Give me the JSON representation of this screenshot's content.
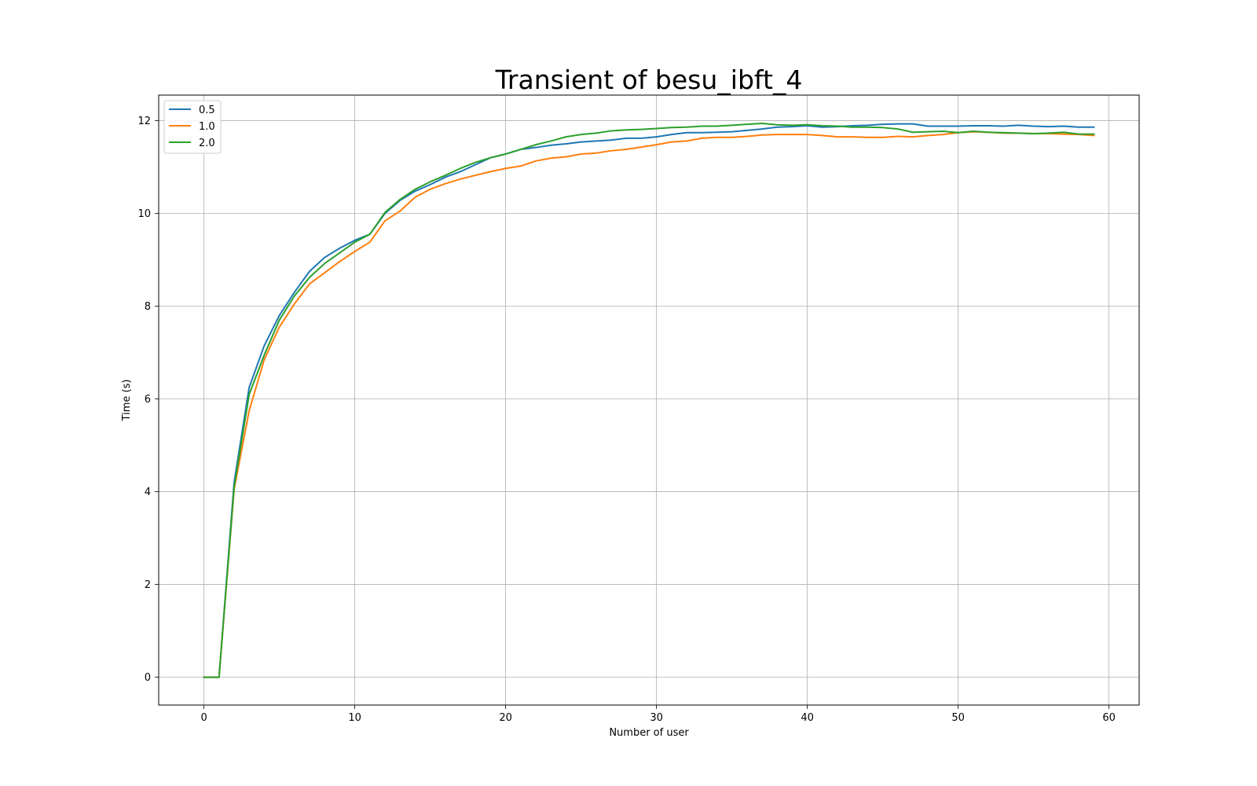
{
  "chart_data": {
    "type": "line",
    "title": "Transient of besu_ibft_4",
    "xlabel": "Number of user",
    "ylabel": "Time (s)",
    "xlim": [
      -3,
      62
    ],
    "ylim": [
      -0.6,
      12.55
    ],
    "xticks": [
      0,
      10,
      20,
      30,
      40,
      50,
      60
    ],
    "yticks": [
      0,
      2,
      4,
      6,
      8,
      10,
      12
    ],
    "grid": true,
    "legend_position": "top-left",
    "x": [
      0,
      1,
      2,
      3,
      4,
      5,
      6,
      7,
      8,
      9,
      10,
      11,
      12,
      13,
      14,
      15,
      16,
      17,
      18,
      19,
      20,
      21,
      22,
      23,
      24,
      25,
      26,
      27,
      28,
      29,
      30,
      31,
      32,
      33,
      34,
      35,
      36,
      37,
      38,
      39,
      40,
      41,
      42,
      43,
      44,
      45,
      46,
      47,
      48,
      49,
      50,
      51,
      52,
      53,
      54,
      55,
      56,
      57,
      58,
      59
    ],
    "series": [
      {
        "name": "0.5",
        "color": "#1f77b4",
        "values": [
          0,
          0,
          4.2,
          6.25,
          7.15,
          7.8,
          8.3,
          8.75,
          9.05,
          9.25,
          9.42,
          9.55,
          10.0,
          10.28,
          10.48,
          10.62,
          10.78,
          10.9,
          11.05,
          11.2,
          11.28,
          11.38,
          11.42,
          11.47,
          11.5,
          11.54,
          11.56,
          11.58,
          11.62,
          11.62,
          11.65,
          11.7,
          11.74,
          11.74,
          11.75,
          11.76,
          11.79,
          11.82,
          11.86,
          11.87,
          11.89,
          11.86,
          11.87,
          11.89,
          11.9,
          11.92,
          11.93,
          11.93,
          11.88,
          11.88,
          11.88,
          11.89,
          11.89,
          11.88,
          11.9,
          11.88,
          11.87,
          11.88,
          11.86,
          11.86
        ]
      },
      {
        "name": "1.0",
        "color": "#ff7f0e",
        "values": [
          0,
          0,
          4.05,
          5.75,
          6.85,
          7.55,
          8.05,
          8.48,
          8.72,
          8.96,
          9.18,
          9.38,
          9.84,
          10.05,
          10.35,
          10.52,
          10.64,
          10.74,
          10.82,
          10.9,
          10.97,
          11.02,
          11.13,
          11.19,
          11.22,
          11.28,
          11.3,
          11.35,
          11.38,
          11.43,
          11.48,
          11.54,
          11.56,
          11.62,
          11.64,
          11.64,
          11.66,
          11.69,
          11.7,
          11.7,
          11.7,
          11.68,
          11.65,
          11.65,
          11.64,
          11.64,
          11.66,
          11.65,
          11.68,
          11.7,
          11.74,
          11.76,
          11.75,
          11.73,
          11.73,
          11.72,
          11.72,
          11.71,
          11.7,
          11.68
        ]
      },
      {
        "name": "2.0",
        "color": "#2ca02c",
        "values": [
          0,
          0,
          4.1,
          6.1,
          6.95,
          7.7,
          8.22,
          8.62,
          8.92,
          9.15,
          9.38,
          9.55,
          10.02,
          10.3,
          10.52,
          10.68,
          10.82,
          10.97,
          11.1,
          11.2,
          11.28,
          11.38,
          11.48,
          11.56,
          11.65,
          11.7,
          11.73,
          11.78,
          11.8,
          11.81,
          11.83,
          11.85,
          11.86,
          11.88,
          11.88,
          11.9,
          11.92,
          11.94,
          11.91,
          11.9,
          11.91,
          11.89,
          11.88,
          11.86,
          11.86,
          11.85,
          11.82,
          11.75,
          11.76,
          11.77,
          11.74,
          11.77,
          11.75,
          11.74,
          11.73,
          11.72,
          11.73,
          11.75,
          11.71,
          11.71
        ]
      }
    ]
  }
}
